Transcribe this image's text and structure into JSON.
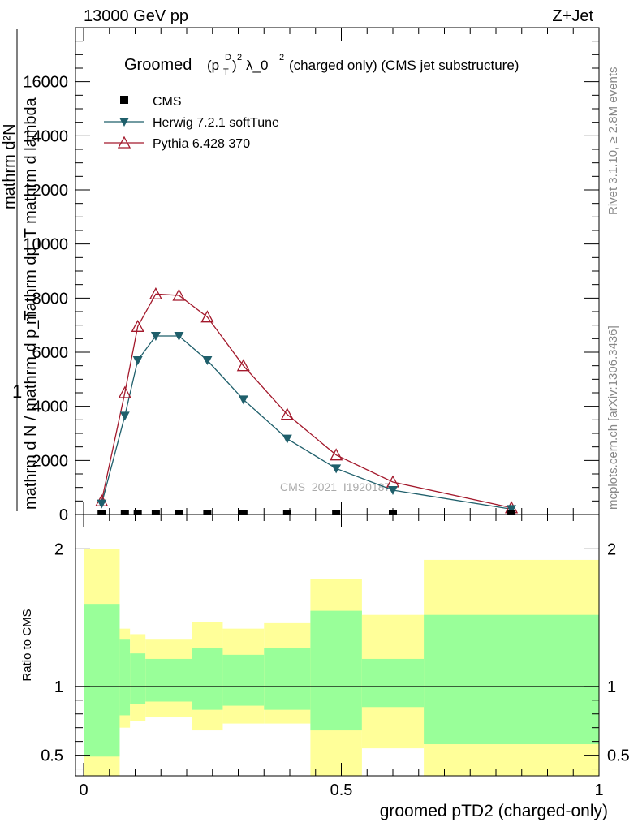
{
  "header": {
    "energy_label": "13000 GeV pp",
    "process_label": "Z+Jet",
    "side_rivet": "Rivet 3.1.10, ≥ 2.8M events",
    "side_mcplots": "mcplots.cern.ch [arXiv:1306.3436]"
  },
  "chart_data": {
    "type": "line",
    "title": "Groomed (p_T^D)^2 λ_0^2  (charged only) (CMS jet substructure)",
    "title_main": "Groomed",
    "title_sym": "(p",
    "title_T": "T",
    "title_D": "D",
    "title_exp1": "2",
    "title_lambda": "λ_0",
    "title_exp2": "2",
    "title_rest": "(charged only) (CMS jet substructure)",
    "xlabel": "groomed pTD2 (charged-only)",
    "ylabel_numerator": "1",
    "ylabel_denominator": "mathrm d N / mathrm d p_T",
    "ylabel_numerator2": "mathrm d^2N",
    "ylabel_denominator2": "mathrm d p_T mathrm d lambda",
    "ylabel_top_line1": "mathrm d²N",
    "ylabel_top_line2": "mathrm dp_T mathrm d lambda",
    "ratio_ylabel": "Ratio to CMS",
    "watermark": "CMS_2021_I1920187",
    "xlim": [
      0,
      1
    ],
    "ylim": [
      0,
      18000
    ],
    "ratio_ylim": [
      0.35,
      2.25
    ],
    "x_ticks": [
      "0",
      "0.5",
      "1"
    ],
    "y_ticks": [
      "0",
      "2000",
      "4000",
      "6000",
      "8000",
      "10000",
      "12000",
      "14000",
      "16000"
    ],
    "ratio_ticks": [
      "0.5",
      "1",
      "2"
    ],
    "legend": {
      "cms": "CMS",
      "herwig": "Herwig 7.2.1 softTune",
      "pythia": "Pythia 6.428 370"
    },
    "colors": {
      "herwig": "#1f5f6b",
      "pythia": "#a3192c",
      "band_inner": "#99ff99",
      "band_outer": "#ffff99"
    },
    "series": [
      {
        "name": "CMS",
        "x": [
          0.035,
          0.08,
          0.105,
          0.14,
          0.185,
          0.24,
          0.31,
          0.395,
          0.49,
          0.6,
          0.83
        ],
        "values": [
          0,
          0,
          0,
          0,
          0,
          0,
          0,
          0,
          0,
          0,
          0
        ]
      },
      {
        "name": "Herwig 7.2.1 softTune",
        "x": [
          0.035,
          0.08,
          0.105,
          0.14,
          0.185,
          0.24,
          0.31,
          0.395,
          0.49,
          0.6,
          0.83
        ],
        "values": [
          400,
          3650,
          5700,
          6600,
          6600,
          5700,
          4250,
          2800,
          1700,
          900,
          200
        ]
      },
      {
        "name": "Pythia 6.428 370",
        "x": [
          0.035,
          0.08,
          0.105,
          0.14,
          0.185,
          0.24,
          0.31,
          0.395,
          0.49,
          0.6,
          0.83
        ],
        "values": [
          500,
          4500,
          6950,
          8150,
          8100,
          7300,
          5500,
          3700,
          2200,
          1200,
          250
        ]
      }
    ],
    "ratio_bands": [
      {
        "x0": 0.0,
        "x1": 0.07,
        "inner": [
          0.49,
          1.6
        ],
        "outer": [
          0.35,
          2.0
        ]
      },
      {
        "x0": 0.07,
        "x1": 0.09,
        "inner": [
          0.79,
          1.34
        ],
        "outer": [
          0.7,
          1.42
        ]
      },
      {
        "x0": 0.09,
        "x1": 0.12,
        "inner": [
          0.87,
          1.24
        ],
        "outer": [
          0.75,
          1.38
        ]
      },
      {
        "x0": 0.12,
        "x1": 0.21,
        "inner": [
          0.89,
          1.2
        ],
        "outer": [
          0.78,
          1.34
        ]
      },
      {
        "x0": 0.21,
        "x1": 0.27,
        "inner": [
          0.83,
          1.28
        ],
        "outer": [
          0.68,
          1.47
        ]
      },
      {
        "x0": 0.27,
        "x1": 0.35,
        "inner": [
          0.86,
          1.23
        ],
        "outer": [
          0.73,
          1.42
        ]
      },
      {
        "x0": 0.35,
        "x1": 0.44,
        "inner": [
          0.83,
          1.28
        ],
        "outer": [
          0.73,
          1.46
        ]
      },
      {
        "x0": 0.44,
        "x1": 0.54,
        "inner": [
          0.68,
          1.55
        ],
        "outer": [
          0.35,
          1.78
        ]
      },
      {
        "x0": 0.54,
        "x1": 0.66,
        "inner": [
          0.85,
          1.2
        ],
        "outer": [
          0.55,
          1.52
        ]
      },
      {
        "x0": 0.66,
        "x1": 1.0,
        "inner": [
          0.58,
          1.52
        ],
        "outer": [
          0.35,
          1.92
        ]
      }
    ]
  }
}
